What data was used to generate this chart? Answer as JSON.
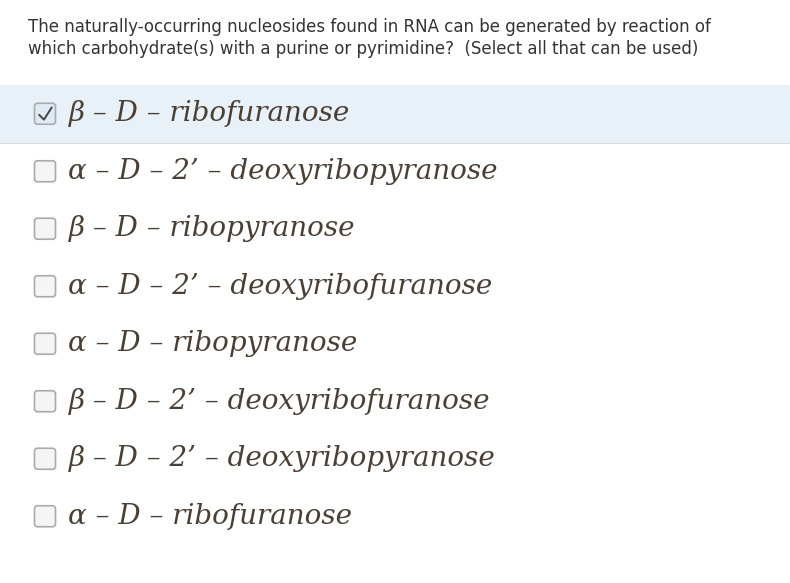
{
  "question_line1": "The naturally-occurring nucleosides found in RNA can be generated by reaction of",
  "question_line2": "which carbohydrate(s) with a purine or pyrimidine?  (Select all that can be used)",
  "options": [
    {
      "label": "β – D – ribofuranose",
      "checked": true,
      "highlight": true
    },
    {
      "label": "α – D – 2’ – deoxyribopyranose",
      "checked": false,
      "highlight": false
    },
    {
      "label": "β – D – ribopyranose",
      "checked": false,
      "highlight": false
    },
    {
      "label": "α – D – 2’ – deoxyribofuranose",
      "checked": false,
      "highlight": false
    },
    {
      "label": "α – D – ribopyranose",
      "checked": false,
      "highlight": false
    },
    {
      "label": "β – D – 2’ – deoxyribofuranose",
      "checked": false,
      "highlight": false
    },
    {
      "label": "β – D – 2’ – deoxyribopyranose",
      "checked": false,
      "highlight": false
    },
    {
      "label": "α – D – ribofuranose",
      "checked": false,
      "highlight": false
    }
  ],
  "bg_color": "#ffffff",
  "highlight_color": "#e8f1f8",
  "text_color": "#4a3f35",
  "question_color": "#333333",
  "checkbox_edge_color": "#aaaaaa",
  "checkbox_fill_color": "#f5f5f5",
  "checked_fill_color": "#e0eaf4",
  "check_color": "#444444",
  "option_fontsize": 20,
  "question_fontsize": 12,
  "fig_width": 7.9,
  "fig_height": 5.83,
  "dpi": 100
}
